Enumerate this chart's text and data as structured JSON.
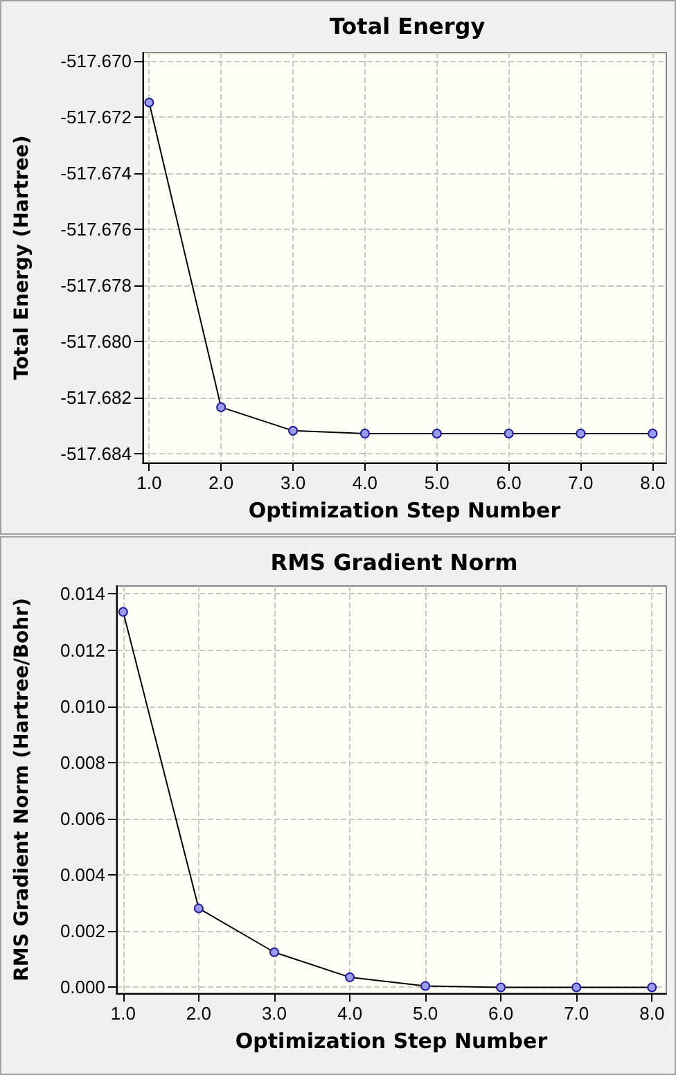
{
  "chart_data": [
    {
      "type": "line",
      "title": "Total Energy",
      "xlabel": "Optimization Step Number",
      "ylabel": "Total Energy (Hartree)",
      "x": [
        1,
        2,
        3,
        4,
        5,
        6,
        7,
        8
      ],
      "series": [
        {
          "color": "#000000",
          "values": [
            -517.67148,
            -517.68235,
            -517.68319,
            -517.68329,
            -517.68329,
            -517.68329,
            -517.68329,
            -517.68329
          ]
        }
      ],
      "xlim": [
        0.91,
        8.19
      ],
      "xticks": [
        {
          "value": 1,
          "label": "1.0"
        },
        {
          "value": 2,
          "label": "2.0"
        },
        {
          "value": 3,
          "label": "3.0"
        },
        {
          "value": 4,
          "label": "4.0"
        },
        {
          "value": 5,
          "label": "5.0"
        },
        {
          "value": 6,
          "label": "6.0"
        },
        {
          "value": 7,
          "label": "7.0"
        },
        {
          "value": 8,
          "label": "8.0"
        }
      ],
      "ylim": [
        -517.68433,
        -517.6697
      ],
      "yticks": [
        {
          "value": -517.684,
          "label": "-517.684"
        },
        {
          "value": -517.682,
          "label": "-517.682"
        },
        {
          "value": -517.68,
          "label": "-517.680"
        },
        {
          "value": -517.678,
          "label": "-517.678"
        },
        {
          "value": -517.676,
          "label": "-517.676"
        },
        {
          "value": -517.674,
          "label": "-517.674"
        },
        {
          "value": -517.672,
          "label": "-517.672"
        },
        {
          "value": -517.67,
          "label": "-517.670"
        }
      ],
      "grid": true,
      "marker": "circle",
      "line_style": "solid"
    },
    {
      "type": "line",
      "title": "RMS Gradient Norm",
      "xlabel": "Optimization Step Number",
      "ylabel": "RMS Gradient Norm (Hartree/Bohr)",
      "x": [
        1,
        2,
        3,
        4,
        5,
        6,
        7,
        8
      ],
      "series": [
        {
          "color": "#000000",
          "values": [
            0.01336,
            0.00281,
            0.00125,
            0.00036,
            5e-05,
            0,
            0,
            0
          ]
        }
      ],
      "xlim": [
        0.91,
        8.19
      ],
      "xticks": [
        {
          "value": 1,
          "label": "1.0"
        },
        {
          "value": 2,
          "label": "2.0"
        },
        {
          "value": 3,
          "label": "3.0"
        },
        {
          "value": 4,
          "label": "4.0"
        },
        {
          "value": 5,
          "label": "5.0"
        },
        {
          "value": 6,
          "label": "6.0"
        },
        {
          "value": 7,
          "label": "7.0"
        },
        {
          "value": 8,
          "label": "8.0"
        }
      ],
      "ylim": [
        -0.00021,
        0.01428
      ],
      "yticks": [
        {
          "value": 0,
          "label": "0.000"
        },
        {
          "value": 0.002,
          "label": "0.002"
        },
        {
          "value": 0.004,
          "label": "0.004"
        },
        {
          "value": 0.006,
          "label": "0.006"
        },
        {
          "value": 0.008,
          "label": "0.008"
        },
        {
          "value": 0.01,
          "label": "0.010"
        },
        {
          "value": 0.012,
          "label": "0.012"
        },
        {
          "value": 0.014,
          "label": "0.014"
        }
      ],
      "grid": true,
      "marker": "circle",
      "line_style": "solid"
    }
  ]
}
